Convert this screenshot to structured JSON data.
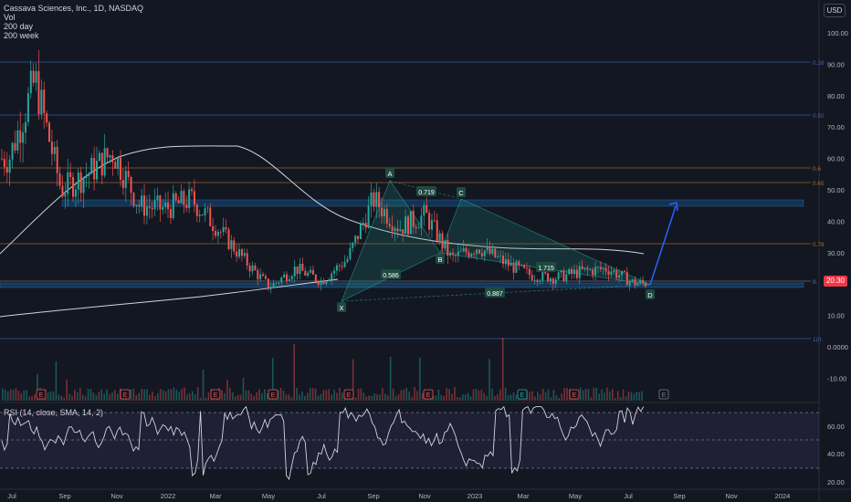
{
  "legend": {
    "title": "Cassava Sciences, Inc., 1D, NASDAQ",
    "vol": "Vol",
    "ma200d": "200 day",
    "ma200w": "200 week"
  },
  "currency": "USD",
  "last_price": "20.30",
  "rsi_label": "RSI (14, close, SMA, 14, 2)",
  "price_axis": [
    "100.00",
    "90.00",
    "80.00",
    "70.00",
    "60.00",
    "50.00",
    "40.00",
    "30.00",
    "20.00",
    "10.00",
    "0.0000",
    "-10.00"
  ],
  "rsi_axis": [
    "60.00",
    "40.00",
    "20.00"
  ],
  "time_axis": [
    "Jul",
    "Sep",
    "Nov",
    "2022",
    "Mar",
    "May",
    "Jul",
    "Sep",
    "Nov",
    "2023",
    "Mar",
    "May",
    "Jul",
    "Sep",
    "Nov",
    "2024"
  ],
  "fib_labels": [
    "0.38",
    "0.50",
    "0.6",
    "0.65",
    "0.78",
    "0.",
    "1(0."
  ],
  "pattern_points": [
    "X",
    "A",
    "B",
    "C",
    "D"
  ],
  "pattern_ratios": [
    "0.719",
    "0.586",
    "1.715",
    "0.887"
  ],
  "earnings_marker": "E",
  "colors": {
    "background": "#131722",
    "up": "#26a69a",
    "down": "#ef5350",
    "pattern_fill": "#26a69a",
    "projection": "#2962ff",
    "fib_blue": "#3f61b3",
    "fib_orange": "#b26b1f",
    "rsi_band": "#7e57c2"
  },
  "chart_data": {
    "type": "candlestick",
    "symbol": "Cassava Sciences, Inc.",
    "interval": "1D",
    "exchange": "NASDAQ",
    "x_range": [
      "2021-07",
      "2024-01"
    ],
    "y_range": [
      -10,
      100
    ],
    "last_price": 20.3,
    "approx_closes": [
      {
        "x": "2021-07",
        "y": 60
      },
      {
        "x": "2021-08",
        "y": 85
      },
      {
        "x": "2021-09",
        "y": 50
      },
      {
        "x": "2021-10",
        "y": 55
      },
      {
        "x": "2021-11",
        "y": 62
      },
      {
        "x": "2021-12",
        "y": 45
      },
      {
        "x": "2022-01",
        "y": 44
      },
      {
        "x": "2022-02",
        "y": 47
      },
      {
        "x": "2022-03",
        "y": 38
      },
      {
        "x": "2022-04",
        "y": 28
      },
      {
        "x": "2022-05",
        "y": 19
      },
      {
        "x": "2022-06",
        "y": 25
      },
      {
        "x": "2022-07",
        "y": 21
      },
      {
        "x": "2022-08",
        "y": 28
      },
      {
        "x": "2022-09",
        "y": 47
      },
      {
        "x": "2022-10",
        "y": 38
      },
      {
        "x": "2022-11",
        "y": 42
      },
      {
        "x": "2022-12",
        "y": 28
      },
      {
        "x": "2023-01",
        "y": 32
      },
      {
        "x": "2023-02",
        "y": 27
      },
      {
        "x": "2023-03",
        "y": 23
      },
      {
        "x": "2023-04",
        "y": 22
      },
      {
        "x": "2023-05",
        "y": 24
      },
      {
        "x": "2023-06",
        "y": 25
      },
      {
        "x": "2023-07",
        "y": 20.3
      }
    ],
    "harmonic_pattern": {
      "X": 14.5,
      "A": 51,
      "B": 32,
      "C": 45,
      "D": 19
    },
    "projection_target": 45,
    "rsi": {
      "levels": [
        70,
        30
      ],
      "ylim": [
        20,
        75
      ]
    }
  }
}
